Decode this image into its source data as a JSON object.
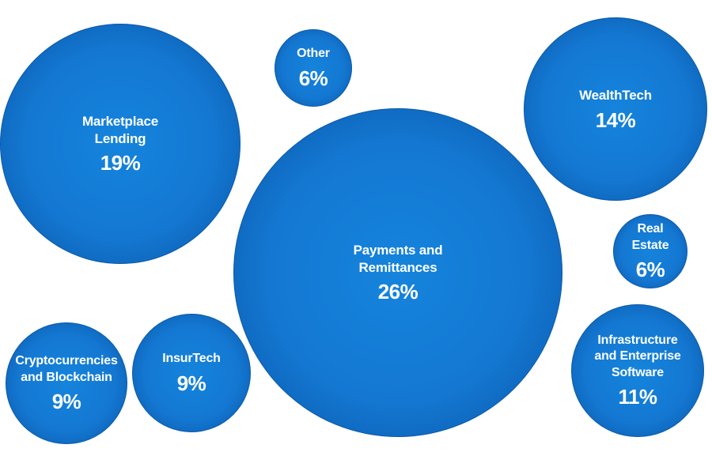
{
  "chart_data": {
    "type": "bubble",
    "title": "",
    "unit": "%",
    "bubbles": [
      {
        "name": "Payments and\nRemittances",
        "value": 26,
        "value_label": "26%",
        "color": "#1478d2"
      },
      {
        "name": "Marketplace\nLending",
        "value": 19,
        "value_label": "19%",
        "color": "#1478d2"
      },
      {
        "name": "WealthTech",
        "value": 14,
        "value_label": "14%",
        "color": "#1478d2"
      },
      {
        "name": "Infrastructure\nand Enterprise\nSoftware",
        "value": 11,
        "value_label": "11%",
        "color": "#1478d2"
      },
      {
        "name": "Cryptocurrencies\nand Blockchain",
        "value": 9,
        "value_label": "9%",
        "color": "#1478d2"
      },
      {
        "name": "InsurTech",
        "value": 9,
        "value_label": "9%",
        "color": "#1478d2"
      },
      {
        "name": "Other",
        "value": 6,
        "value_label": "6%",
        "color": "#1478d2"
      },
      {
        "name": "Real\nEstate",
        "value": 6,
        "value_label": "6%",
        "color": "#1478d2"
      }
    ]
  }
}
